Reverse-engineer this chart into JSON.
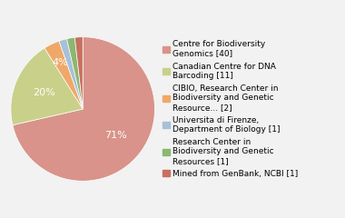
{
  "labels": [
    "Centre for Biodiversity\nGenomics [40]",
    "Canadian Centre for DNA\nBarcoding [11]",
    "CIBIO, Research Center in\nBiodiversity and Genetic\nResource... [2]",
    "Universita di Firenze,\nDepartment of Biology [1]",
    "Research Center in\nBiodiversity and Genetic\nResources [1]",
    "Mined from GenBank, NCBI [1]"
  ],
  "values": [
    40,
    11,
    2,
    1,
    1,
    1
  ],
  "colors": [
    "#d9938a",
    "#c8d08a",
    "#f0a868",
    "#a8c0d8",
    "#8ab870",
    "#c87060"
  ],
  "background_color": "#f2f2f2",
  "legend_fontsize": 6.5,
  "pct_fontsize": 8
}
